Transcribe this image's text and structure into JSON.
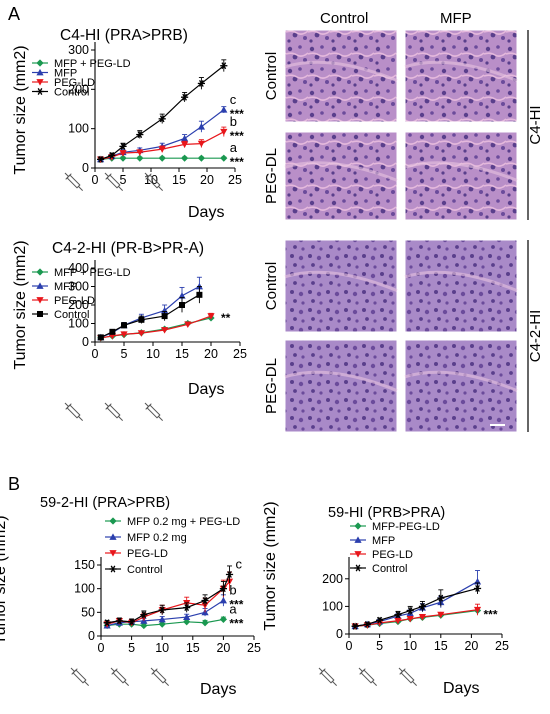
{
  "panel_labels": {
    "a": "A",
    "b": "B"
  },
  "histology": {
    "col_headers": [
      "Control",
      "MFP"
    ],
    "row_labels_top": [
      "Control",
      "PEG-DL"
    ],
    "row_labels_bottom": [
      "Control",
      "PEG-DL"
    ],
    "group_top": "C4-HI",
    "group_bottom": "C4-2-HI",
    "colors": {
      "stroma": "#d8a0d0",
      "nuclei": "#5a3f8c",
      "base": "#b98fc8",
      "pink": "#e4b8dc"
    }
  },
  "colors": {
    "green": "#1a9850",
    "blue": "#2b3fae",
    "red": "#e8161b",
    "black": "#000000"
  },
  "chart_data": [
    {
      "type": "line",
      "title": "C4-HI (PRA>PRB)",
      "xlabel": "Days",
      "ylabel": "Tumor size (mm2)",
      "xlim": [
        0,
        25
      ],
      "ylim": [
        0,
        300
      ],
      "xticks": [
        0,
        5,
        10,
        15,
        20,
        25
      ],
      "yticks": [
        0,
        100,
        200,
        300
      ],
      "legend": "top-left",
      "series": [
        {
          "name": "MFP + PEG-LD",
          "color": "#1a9850",
          "marker": "diamond",
          "x": [
            1,
            3,
            5,
            8,
            12,
            16,
            19,
            23
          ],
          "y": [
            22,
            25,
            25,
            25,
            25,
            25,
            25,
            25
          ],
          "err": [
            3,
            3,
            3,
            3,
            3,
            3,
            3,
            3
          ],
          "end_label": "a",
          "sig": "***"
        },
        {
          "name": "MFP",
          "color": "#2b3fae",
          "marker": "triangle-up",
          "x": [
            1,
            3,
            5,
            8,
            12,
            16,
            19,
            23
          ],
          "y": [
            22,
            30,
            40,
            45,
            55,
            75,
            105,
            148
          ],
          "err": [
            4,
            5,
            6,
            6,
            8,
            10,
            14,
            8
          ],
          "end_label": "c",
          "sig": "***"
        },
        {
          "name": "PEG-LD",
          "color": "#e8161b",
          "marker": "triangle-down",
          "x": [
            1,
            3,
            5,
            8,
            12,
            16,
            19,
            23
          ],
          "y": [
            22,
            28,
            38,
            40,
            48,
            60,
            62,
            92
          ],
          "err": [
            4,
            5,
            6,
            6,
            8,
            8,
            10,
            12
          ],
          "end_label": "b",
          "sig": "***"
        },
        {
          "name": "Control",
          "color": "#000000",
          "marker": "star",
          "x": [
            1,
            3,
            5,
            8,
            12,
            16,
            19,
            23
          ],
          "y": [
            22,
            32,
            55,
            85,
            125,
            180,
            215,
            260
          ],
          "err": [
            4,
            6,
            8,
            10,
            12,
            12,
            15,
            15
          ]
        }
      ]
    },
    {
      "type": "line",
      "title": "C4-2-HI (PR-B>PR-A)",
      "xlabel": "Days",
      "ylabel": "Tumor size (mm2)",
      "xlim": [
        0,
        25
      ],
      "ylim": [
        0,
        400
      ],
      "xticks": [
        0,
        5,
        10,
        15,
        20,
        25
      ],
      "yticks": [
        0,
        100,
        200,
        300,
        400
      ],
      "legend": "top-left",
      "series": [
        {
          "name": "MFP + PEG-LD",
          "color": "#1a9850",
          "marker": "diamond",
          "x": [
            1,
            3,
            5,
            8,
            12,
            16,
            20
          ],
          "y": [
            22,
            32,
            40,
            50,
            70,
            100,
            130
          ],
          "err": [
            4,
            5,
            5,
            6,
            8,
            10,
            12
          ]
        },
        {
          "name": "MFP",
          "color": "#2b3fae",
          "marker": "triangle-up",
          "x": [
            1,
            3,
            5,
            8,
            12,
            15,
            18
          ],
          "y": [
            25,
            50,
            90,
            130,
            170,
            250,
            300
          ],
          "err": [
            5,
            10,
            15,
            20,
            30,
            45,
            50
          ]
        },
        {
          "name": "PEG-LD",
          "color": "#e8161b",
          "marker": "triangle-down",
          "x": [
            1,
            3,
            5,
            8,
            12,
            16,
            20
          ],
          "y": [
            22,
            33,
            42,
            48,
            65,
            95,
            140
          ],
          "err": [
            4,
            5,
            6,
            6,
            8,
            12,
            15
          ]
        },
        {
          "name": "Control",
          "color": "#000000",
          "marker": "square",
          "x": [
            1,
            3,
            5,
            8,
            12,
            15,
            18
          ],
          "y": [
            25,
            55,
            90,
            120,
            140,
            200,
            255
          ],
          "err": [
            5,
            10,
            15,
            20,
            25,
            40,
            45
          ]
        }
      ],
      "sig": "**"
    },
    {
      "type": "line",
      "title": "59-2-HI (PRA>PRB)",
      "xlabel": "Days",
      "ylabel": "Tumor size (mm2)",
      "xlim": [
        0,
        25
      ],
      "ylim": [
        0,
        150
      ],
      "xticks": [
        0,
        5,
        10,
        15,
        20,
        25
      ],
      "yticks": [
        0,
        50,
        100,
        150
      ],
      "legend": "top-left",
      "series": [
        {
          "name": "MFP 0.2 mg + PEG-LD",
          "color": "#1a9850",
          "marker": "diamond",
          "x": [
            1,
            3,
            5,
            7,
            10,
            14,
            17,
            20
          ],
          "y": [
            22,
            25,
            25,
            22,
            25,
            30,
            28,
            35
          ],
          "err": [
            4,
            4,
            4,
            4,
            5,
            5,
            5,
            5
          ],
          "end_label": "a",
          "sig": "***"
        },
        {
          "name": "MFP 0.2 mg",
          "color": "#2b3fae",
          "marker": "triangle-up",
          "x": [
            1,
            3,
            5,
            7,
            10,
            14,
            17,
            20
          ],
          "y": [
            22,
            28,
            30,
            32,
            35,
            40,
            50,
            75
          ],
          "err": [
            4,
            5,
            5,
            5,
            6,
            6,
            8,
            12
          ],
          "end_label": "b",
          "sig": "***"
        },
        {
          "name": "PEG-LD",
          "color": "#e8161b",
          "marker": "triangle-down",
          "x": [
            1,
            3,
            5,
            7,
            10,
            14,
            17,
            20,
            21
          ],
          "y": [
            25,
            32,
            28,
            40,
            55,
            70,
            65,
            100,
            115
          ],
          "err": [
            5,
            6,
            6,
            8,
            10,
            12,
            15,
            18,
            20
          ]
        },
        {
          "name": "Control",
          "color": "#000000",
          "marker": "star",
          "x": [
            1,
            3,
            5,
            7,
            10,
            14,
            17,
            20,
            21
          ],
          "y": [
            28,
            32,
            30,
            45,
            55,
            60,
            75,
            100,
            130
          ],
          "err": [
            5,
            6,
            6,
            8,
            10,
            10,
            12,
            15,
            18
          ],
          "end_label": "c"
        }
      ]
    },
    {
      "type": "line",
      "title": "59-HI (PRB>PRA)",
      "xlabel": "Days",
      "ylabel": "Tumor size (mm2)",
      "xlim": [
        0,
        25
      ],
      "ylim": [
        0,
        250
      ],
      "xticks": [
        0,
        5,
        10,
        15,
        20,
        25
      ],
      "yticks": [
        0,
        100,
        200
      ],
      "legend": "top-left",
      "series": [
        {
          "name": "MFP-PEG-LD",
          "color": "#1a9850",
          "marker": "diamond",
          "x": [
            1,
            3,
            5,
            8,
            10,
            12,
            15,
            21
          ],
          "y": [
            28,
            32,
            38,
            45,
            55,
            60,
            68,
            85
          ],
          "err": [
            4,
            5,
            5,
            6,
            6,
            6,
            8,
            10
          ],
          "sig": "***"
        },
        {
          "name": "MFP",
          "color": "#2b3fae",
          "marker": "triangle-up",
          "x": [
            1,
            3,
            5,
            8,
            10,
            12,
            15,
            21
          ],
          "y": [
            28,
            35,
            45,
            65,
            75,
            95,
            115,
            190
          ],
          "err": [
            5,
            6,
            8,
            10,
            12,
            15,
            20,
            40
          ]
        },
        {
          "name": "PEG-LD",
          "color": "#e8161b",
          "marker": "triangle-down",
          "x": [
            1,
            3,
            5,
            8,
            10,
            12,
            15,
            21
          ],
          "y": [
            28,
            32,
            40,
            48,
            55,
            62,
            70,
            88
          ],
          "err": [
            4,
            5,
            5,
            6,
            6,
            8,
            8,
            20
          ]
        },
        {
          "name": "Control",
          "color": "#000000",
          "marker": "star",
          "x": [
            1,
            3,
            5,
            8,
            10,
            12,
            15,
            21
          ],
          "y": [
            28,
            35,
            50,
            70,
            85,
            100,
            130,
            165
          ],
          "err": [
            5,
            6,
            8,
            12,
            15,
            18,
            30,
            20
          ]
        }
      ]
    }
  ]
}
